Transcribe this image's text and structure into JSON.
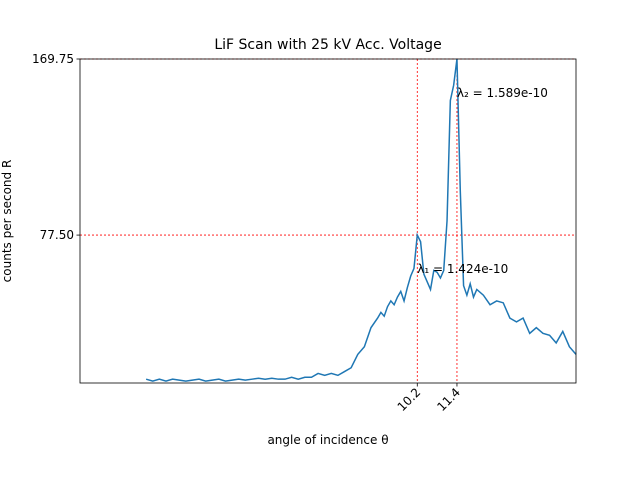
{
  "chart_data": {
    "type": "line",
    "title": "LiF Scan with 25 kV Acc. Voltage",
    "xlabel": "angle of incidence θ",
    "ylabel": "counts per second R",
    "x": [
      2.0,
      2.2,
      2.4,
      2.6,
      2.8,
      3.0,
      3.2,
      3.4,
      3.6,
      3.8,
      4.0,
      4.2,
      4.4,
      4.6,
      4.8,
      5.0,
      5.2,
      5.4,
      5.6,
      5.8,
      6.0,
      6.2,
      6.4,
      6.6,
      6.8,
      7.0,
      7.2,
      7.4,
      7.6,
      7.8,
      8.0,
      8.2,
      8.4,
      8.6,
      8.8,
      9.0,
      9.1,
      9.2,
      9.3,
      9.4,
      9.5,
      9.6,
      9.7,
      9.8,
      9.9,
      10.0,
      10.1,
      10.2,
      10.3,
      10.4,
      10.5,
      10.6,
      10.7,
      10.8,
      10.9,
      11.0,
      11.1,
      11.2,
      11.3,
      11.4,
      11.5,
      11.6,
      11.7,
      11.8,
      11.9,
      12.0,
      12.2,
      12.4,
      12.6,
      12.8,
      13.0,
      13.2,
      13.4,
      13.6,
      13.8,
      14.0,
      14.2,
      14.4,
      14.6,
      14.8,
      15.0
    ],
    "series": [
      {
        "name": "LiF",
        "color": "#1f77b4",
        "values": [
          2,
          1,
          2,
          1,
          2,
          1.5,
          1,
          1.5,
          2,
          1,
          1.5,
          2,
          1,
          1.5,
          2,
          1.5,
          2,
          2.5,
          2,
          2.5,
          2,
          2,
          3,
          2,
          3,
          3,
          5,
          4,
          5,
          4,
          6,
          8,
          15,
          19,
          29,
          34,
          37,
          35,
          40,
          43,
          41,
          45,
          48,
          43,
          50,
          56,
          60,
          77.5,
          74,
          57,
          53,
          49,
          59,
          58,
          55,
          59,
          85,
          148,
          156,
          169.75,
          101,
          51,
          46,
          52,
          45,
          49,
          46,
          41,
          43,
          42,
          34,
          32,
          34,
          26,
          29,
          26,
          25,
          21,
          27,
          19,
          15
        ]
      }
    ],
    "peaks": [
      {
        "x": 10.2,
        "y": 77.5,
        "label": "λ₁ = 1.424e-10"
      },
      {
        "x": 11.4,
        "y": 169.75,
        "label": "λ₂ = 1.589e-10"
      }
    ],
    "peak_color": "#ff0000",
    "xlim": [
      0,
      15
    ],
    "ylim": [
      0,
      169.75
    ],
    "xticks": [
      10.2,
      11.4
    ],
    "yticks": [
      {
        "value": 77.5,
        "label": "77.50"
      },
      169.75
    ]
  }
}
